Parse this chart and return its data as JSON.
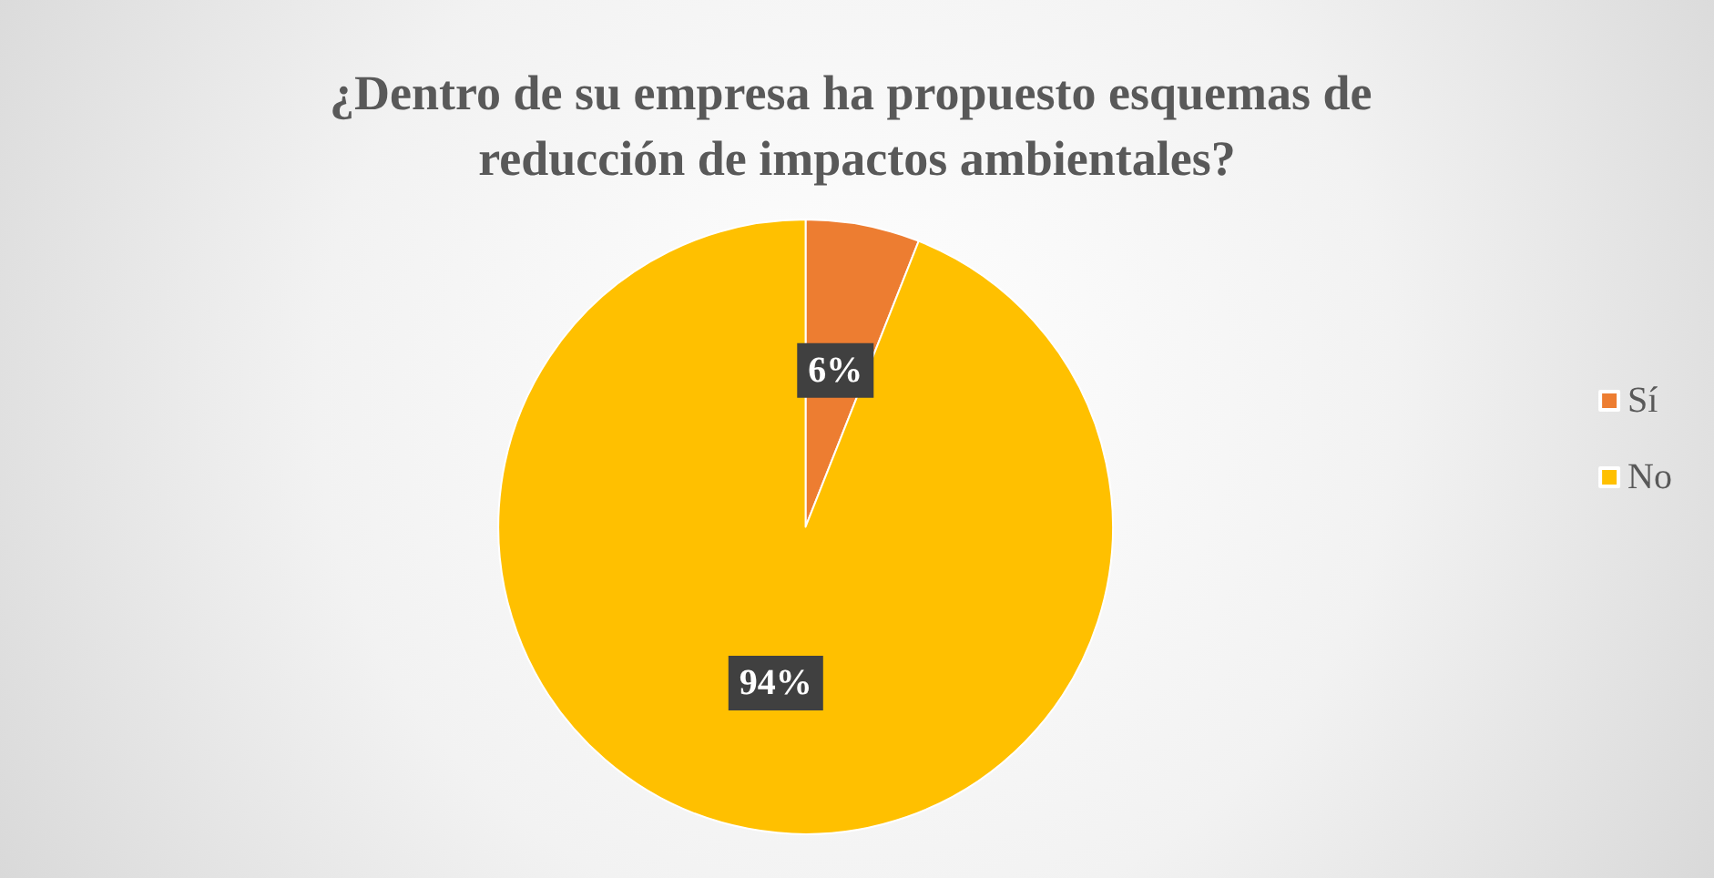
{
  "chart_data": {
    "type": "pie",
    "title": "¿Dentro de su empresa ha propuesto esquemas de reducción de impactos ambientales?",
    "categories": [
      "Sí",
      "No"
    ],
    "values": [
      6,
      94
    ],
    "colors": [
      "#ed7d31",
      "#ffc000"
    ],
    "value_labels": [
      "6%",
      "94%"
    ],
    "legend": "right"
  }
}
